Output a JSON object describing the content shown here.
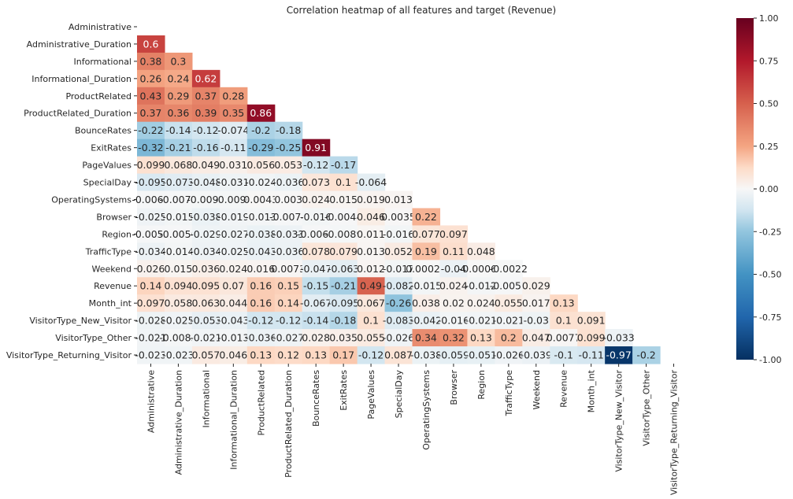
{
  "chart_data": {
    "type": "heatmap",
    "title": "Correlation heatmap of all features and target (Revenue)",
    "xlabel": "",
    "ylabel": "",
    "labels": [
      "Administrative",
      "Administrative_Duration",
      "Informational",
      "Informational_Duration",
      "ProductRelated",
      "ProductRelated_Duration",
      "BounceRates",
      "ExitRates",
      "PageValues",
      "SpecialDay",
      "OperatingSystems",
      "Browser",
      "Region",
      "TrafficType",
      "Weekend",
      "Revenue",
      "Month_int",
      "VisitorType_New_Visitor",
      "VisitorType_Other",
      "VisitorType_Returning_Visitor"
    ],
    "mask": "upper-triangle-including-diagonal",
    "rows": [
      [],
      [
        "0.6"
      ],
      [
        "0.38",
        "0.3"
      ],
      [
        "0.26",
        "0.24",
        "0.62"
      ],
      [
        "0.43",
        "0.29",
        "0.37",
        "0.28"
      ],
      [
        "0.37",
        "0.36",
        "0.39",
        "0.35",
        "0.86"
      ],
      [
        "-0.22",
        "-0.14",
        "-0.12",
        "-0.074",
        "-0.2",
        "-0.18"
      ],
      [
        "-0.32",
        "-0.21",
        "-0.16",
        "-0.11",
        "-0.29",
        "-0.25",
        "0.91"
      ],
      [
        "0.099",
        "0.068",
        "0.049",
        "0.031",
        "0.056",
        "0.053",
        "-0.12",
        "-0.17"
      ],
      [
        "-0.095",
        "-0.073",
        "-0.048",
        "-0.031",
        "-0.024",
        "-0.036",
        "0.073",
        "0.1",
        "-0.064"
      ],
      [
        "-0.0063",
        "-0.0073",
        "-0.0095",
        "-0.0096",
        "0.0043",
        "0.003",
        "0.024",
        "0.015",
        "0.019",
        "0.013"
      ],
      [
        "-0.025",
        "-0.015",
        "-0.038",
        "-0.019",
        "-0.013",
        "-0.0074",
        "-0.016",
        "-0.0044",
        "0.046",
        "0.0035",
        "0.22"
      ],
      [
        "-0.0055",
        "-0.0056",
        "-0.029",
        "-0.027",
        "-0.038",
        "-0.033",
        "-0.0065",
        "-0.0089",
        "0.011",
        "-0.016",
        "0.077",
        "0.097"
      ],
      [
        "-0.034",
        "-0.014",
        "-0.034",
        "-0.025",
        "-0.043",
        "-0.036",
        "0.078",
        "0.079",
        "0.013",
        "0.052",
        "0.19",
        "0.11",
        "0.048"
      ],
      [
        "0.026",
        "0.015",
        "0.036",
        "0.024",
        "0.016",
        "0.0073",
        "-0.047",
        "-0.063",
        "0.012",
        "-0.017",
        "0.00028",
        "-0.04",
        "-0.00069",
        "-0.0022"
      ],
      [
        "0.14",
        "0.094",
        "0.095",
        "0.07",
        "0.16",
        "0.15",
        "-0.15",
        "-0.21",
        "0.49",
        "-0.082",
        "-0.015",
        "0.024",
        "-0.012",
        "-0.0051",
        "0.029"
      ],
      [
        "0.097",
        "0.058",
        "0.063",
        "0.044",
        "0.16",
        "0.14",
        "-0.067",
        "-0.095",
        "0.067",
        "-0.26",
        "0.038",
        "0.02",
        "0.024",
        "0.055",
        "0.017",
        "0.13"
      ],
      [
        "-0.028",
        "-0.025",
        "-0.053",
        "-0.043",
        "-0.12",
        "-0.12",
        "-0.14",
        "-0.18",
        "0.1",
        "-0.083",
        "-0.042",
        "-0.016",
        "-0.021",
        "-0.021",
        "-0.03",
        "0.1",
        "0.091"
      ],
      [
        "-0.021",
        "-0.0085",
        "-0.021",
        "-0.013",
        "-0.036",
        "-0.027",
        "0.028",
        "0.035",
        "0.055",
        "-0.026",
        "0.34",
        "0.32",
        "0.13",
        "0.2",
        "0.047",
        "0.0077",
        "0.099",
        "-0.033"
      ],
      [
        "-0.023",
        "-0.023",
        "0.057",
        "0.046",
        "0.13",
        "0.12",
        "0.13",
        "0.17",
        "-0.12",
        "0.087",
        "-0.038",
        "-0.059",
        "-0.051",
        "-0.026",
        "-0.039",
        "-0.1",
        "-0.11",
        "-0.97",
        "-0.2"
      ]
    ],
    "colorbar": {
      "colormap": "RdBu_r",
      "range": [
        -1,
        1
      ],
      "ticks": [
        "1.00",
        "0.75",
        "0.50",
        "0.25",
        "0.00",
        "-0.25",
        "-0.50",
        "-0.75",
        "-1.00"
      ]
    }
  }
}
